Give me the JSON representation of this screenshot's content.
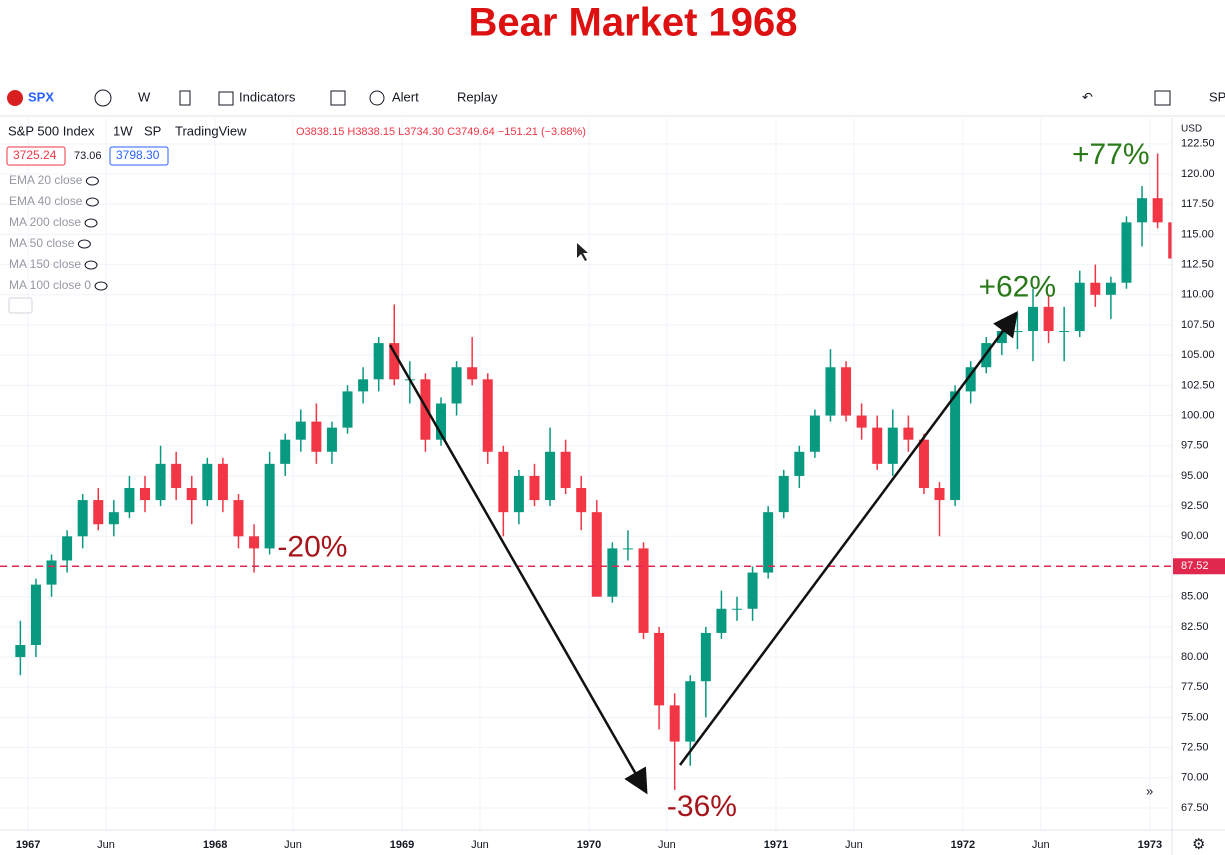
{
  "header": {
    "title": "Bear Market 1968"
  },
  "toolbar": {
    "symbol": "SPX",
    "interval": "W",
    "indicators": "Indicators",
    "alert": "Alert",
    "replay": "Replay",
    "right": "SP"
  },
  "legend": {
    "name": "S&P 500 Index",
    "interval": "1W",
    "exchange": "SP",
    "source": "TradingView",
    "ohlc": "O3838.15 H3838.15 L3734.30 C3749.64 −151.21 (−3.88%)",
    "bid": "3725.24",
    "spread": "73.06",
    "ask": "3798.30"
  },
  "indicators": [
    "EMA 20 close",
    "EMA 40 close",
    "MA 200 close",
    "MA 50 close",
    "MA 150 close",
    "MA 100 close 0"
  ],
  "chart_data": {
    "type": "candlestick",
    "currency": "USD",
    "x": [
      "1966-12",
      "1967-01",
      "1967-02",
      "1967-03",
      "1967-04",
      "1967-05",
      "1967-06",
      "1967-07",
      "1967-08",
      "1967-09",
      "1967-10",
      "1967-11",
      "1967-12",
      "1968-01",
      "1968-02",
      "1968-03",
      "1968-04",
      "1968-05",
      "1968-06",
      "1968-07",
      "1968-08",
      "1968-09",
      "1968-10",
      "1968-11",
      "1968-12",
      "1969-01",
      "1969-02",
      "1969-03",
      "1969-04",
      "1969-05",
      "1969-06",
      "1969-07",
      "1969-08",
      "1969-09",
      "1969-10",
      "1969-11",
      "1969-12",
      "1970-01",
      "1970-02",
      "1970-03",
      "1970-04",
      "1970-05",
      "1970-06",
      "1970-07",
      "1970-08",
      "1970-09",
      "1970-10",
      "1970-11",
      "1970-12",
      "1971-01",
      "1971-02",
      "1971-03",
      "1971-04",
      "1971-05",
      "1971-06",
      "1971-07",
      "1971-08",
      "1971-09",
      "1971-10",
      "1971-11",
      "1971-12",
      "1972-01",
      "1972-02",
      "1972-03",
      "1972-04",
      "1972-05",
      "1972-06",
      "1972-07",
      "1972-08",
      "1972-09",
      "1972-10",
      "1972-11",
      "1972-12",
      "1973-01",
      "1973-02"
    ],
    "open": [
      80,
      81,
      86,
      88,
      90,
      93,
      91,
      92,
      94,
      93,
      96,
      94,
      93,
      96,
      93,
      90,
      89,
      96,
      98,
      99.5,
      97,
      99,
      102,
      103,
      106,
      103,
      103,
      98,
      101,
      104,
      103,
      97,
      92,
      95,
      93,
      97,
      94,
      92,
      85,
      89,
      89,
      82,
      76,
      73,
      78,
      82,
      84,
      84,
      87,
      92,
      95,
      97,
      100,
      104,
      100,
      99,
      96,
      99,
      98,
      94,
      93,
      102,
      104,
      106,
      107,
      107,
      109,
      107,
      107,
      111,
      110,
      111,
      116,
      118,
      116
    ],
    "high": [
      83,
      86.5,
      88.5,
      90.5,
      93.5,
      94,
      93,
      95,
      95,
      97.5,
      97,
      95,
      96.5,
      96.5,
      93.5,
      91,
      97,
      98.5,
      100.5,
      101,
      99.5,
      102.5,
      104,
      106.5,
      109.2,
      104.5,
      103.5,
      101.5,
      104.5,
      106.5,
      103.5,
      97.5,
      95.5,
      96,
      99,
      98,
      95,
      93,
      89.5,
      90.5,
      89.5,
      82.5,
      77,
      78.5,
      82.5,
      85.5,
      85,
      87.5,
      92.5,
      95.5,
      97.5,
      100.5,
      105.5,
      104.5,
      101,
      100,
      100.5,
      100,
      98.5,
      94.5,
      102.5,
      104.5,
      106.5,
      108,
      108.5,
      110.5,
      110,
      109,
      112,
      112.5,
      111.5,
      116.5,
      119,
      121.7,
      116.5
    ],
    "low": [
      78.5,
      80,
      85,
      87,
      89,
      90.5,
      90,
      91.5,
      92,
      92.5,
      93,
      91,
      92.5,
      92,
      89,
      87,
      88.5,
      95,
      97,
      96,
      96,
      98.5,
      101,
      102,
      102.5,
      101,
      97,
      97.5,
      100,
      102.5,
      96,
      90,
      91,
      92.5,
      92.5,
      93.5,
      90.5,
      85,
      84.5,
      88,
      81.5,
      74,
      69,
      71,
      75,
      81.5,
      83,
      83,
      86.5,
      91.5,
      94,
      96.5,
      99.5,
      99.5,
      98,
      95.5,
      95,
      97,
      93.5,
      90,
      92.5,
      101,
      103.5,
      105,
      105.5,
      104.5,
      106,
      104.5,
      106.5,
      109,
      108,
      110.5,
      114,
      115.5,
      112
    ],
    "close": [
      81,
      86,
      88,
      90,
      93,
      91,
      92,
      94,
      93,
      96,
      94,
      93,
      96,
      93,
      90,
      89,
      96,
      98,
      99.5,
      97,
      99,
      102,
      103,
      106,
      103,
      103,
      98,
      101,
      104,
      103,
      97,
      92,
      95,
      93,
      97,
      94,
      92,
      85,
      89,
      89,
      82,
      76,
      73,
      78,
      82,
      84,
      84,
      87,
      92,
      95,
      97,
      100,
      104,
      100,
      99,
      96,
      99,
      98,
      94,
      93,
      102,
      104,
      106,
      107,
      107,
      109,
      107,
      107,
      111,
      110,
      111,
      116,
      118,
      116,
      113
    ],
    "up_color": "#089981",
    "down_color": "#f23645",
    "xlim": [
      "1966-11",
      "1973-03"
    ],
    "xticks": [
      {
        "value": "1967-01",
        "label": "1967"
      },
      {
        "value": "1967-06",
        "label": "Jun"
      },
      {
        "value": "1968-01",
        "label": "1968"
      },
      {
        "value": "1968-06",
        "label": "Jun"
      },
      {
        "value": "1969-01",
        "label": "1969"
      },
      {
        "value": "1969-06",
        "label": "Jun"
      },
      {
        "value": "1970-01",
        "label": "1970"
      },
      {
        "value": "1970-06",
        "label": "Jun"
      },
      {
        "value": "1971-01",
        "label": "1971"
      },
      {
        "value": "1971-06",
        "label": "Jun"
      },
      {
        "value": "1972-01",
        "label": "1972"
      },
      {
        "value": "1972-06",
        "label": "Jun"
      },
      {
        "value": "1973-01",
        "label": "1973"
      }
    ],
    "ylim": [
      65.68,
      124.64
    ],
    "yticks": [
      {
        "value": 67.5,
        "label": "67.50"
      },
      {
        "value": 70,
        "label": "70.00"
      },
      {
        "value": 72.5,
        "label": "72.50"
      },
      {
        "value": 75,
        "label": "75.00"
      },
      {
        "value": 77.5,
        "label": "77.50"
      },
      {
        "value": 80,
        "label": "80.00"
      },
      {
        "value": 82.5,
        "label": "82.50"
      },
      {
        "value": 85,
        "label": "85.00"
      },
      {
        "value": 87.5,
        "label": "87.50"
      },
      {
        "value": 90,
        "label": "90.00"
      },
      {
        "value": 92.5,
        "label": "92.50"
      },
      {
        "value": 95,
        "label": "95.00"
      },
      {
        "value": 97.5,
        "label": "97.50"
      },
      {
        "value": 100,
        "label": "100.00"
      },
      {
        "value": 102.5,
        "label": "102.50"
      },
      {
        "value": 105,
        "label": "105.00"
      },
      {
        "value": 107.5,
        "label": "107.50"
      },
      {
        "value": 110,
        "label": "110.00"
      },
      {
        "value": 112.5,
        "label": "112.50"
      },
      {
        "value": 115,
        "label": "115.00"
      },
      {
        "value": 117.5,
        "label": "117.50"
      },
      {
        "value": 120,
        "label": "120.00"
      },
      {
        "value": 122.5,
        "label": "122.50"
      }
    ],
    "grid": true,
    "level": {
      "value": 87.52,
      "label": "87.52",
      "color": "#e0284f"
    },
    "annotations": [
      {
        "text": "-20%",
        "x": "1968-05",
        "y": 89,
        "color": "#a5151b"
      },
      {
        "text": "-36%",
        "x": "1970-06",
        "y": 67.5,
        "color": "#a5151b"
      },
      {
        "text": "+62%",
        "x": "1972-02",
        "y": 110.5,
        "color": "#2a7a1a"
      },
      {
        "text": "+77%",
        "x": "1972-08",
        "y": 121.5,
        "color": "#2a7a1a"
      }
    ]
  }
}
